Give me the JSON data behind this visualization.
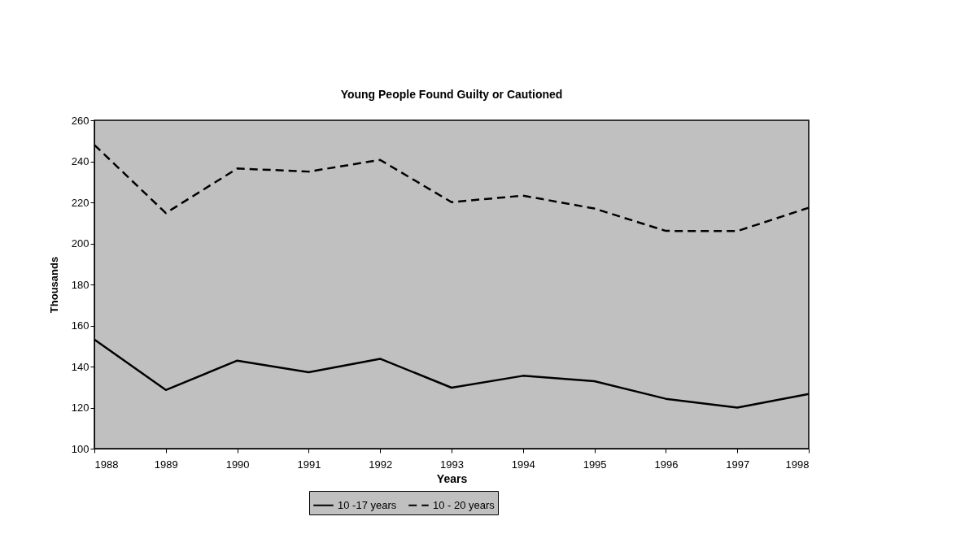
{
  "chart_data": {
    "type": "line",
    "title": "Young People Found Guilty or Cautioned",
    "xlabel": "Years",
    "ylabel": "Thousands",
    "x": [
      1988,
      1989,
      1990,
      1991,
      1992,
      1993,
      1994,
      1995,
      1996,
      1997,
      1998
    ],
    "series": [
      {
        "name": "10 -17 years",
        "color": "#000000",
        "line_style": "solid",
        "values": [
          153.2,
          128.6,
          142.9,
          137.2,
          143.8,
          129.7,
          135.5,
          132.9,
          124.3,
          120.0,
          126.6
        ]
      },
      {
        "name": "10 - 20 years",
        "color": "#000000",
        "line_style": "dashed",
        "values": [
          248.0,
          214.8,
          236.5,
          235.0,
          240.7,
          220.1,
          223.3,
          217.0,
          206.1,
          206.0,
          217.4
        ]
      }
    ],
    "xlim": [
      1988,
      1998
    ],
    "xticks": [
      1988,
      1989,
      1990,
      1991,
      1992,
      1993,
      1994,
      1995,
      1996,
      1997,
      1998
    ],
    "ylim": [
      100,
      260
    ],
    "yticks": [
      100,
      120,
      140,
      160,
      180,
      200,
      220,
      240,
      260
    ],
    "grid": false,
    "legend": "bottom",
    "marker": "none"
  }
}
